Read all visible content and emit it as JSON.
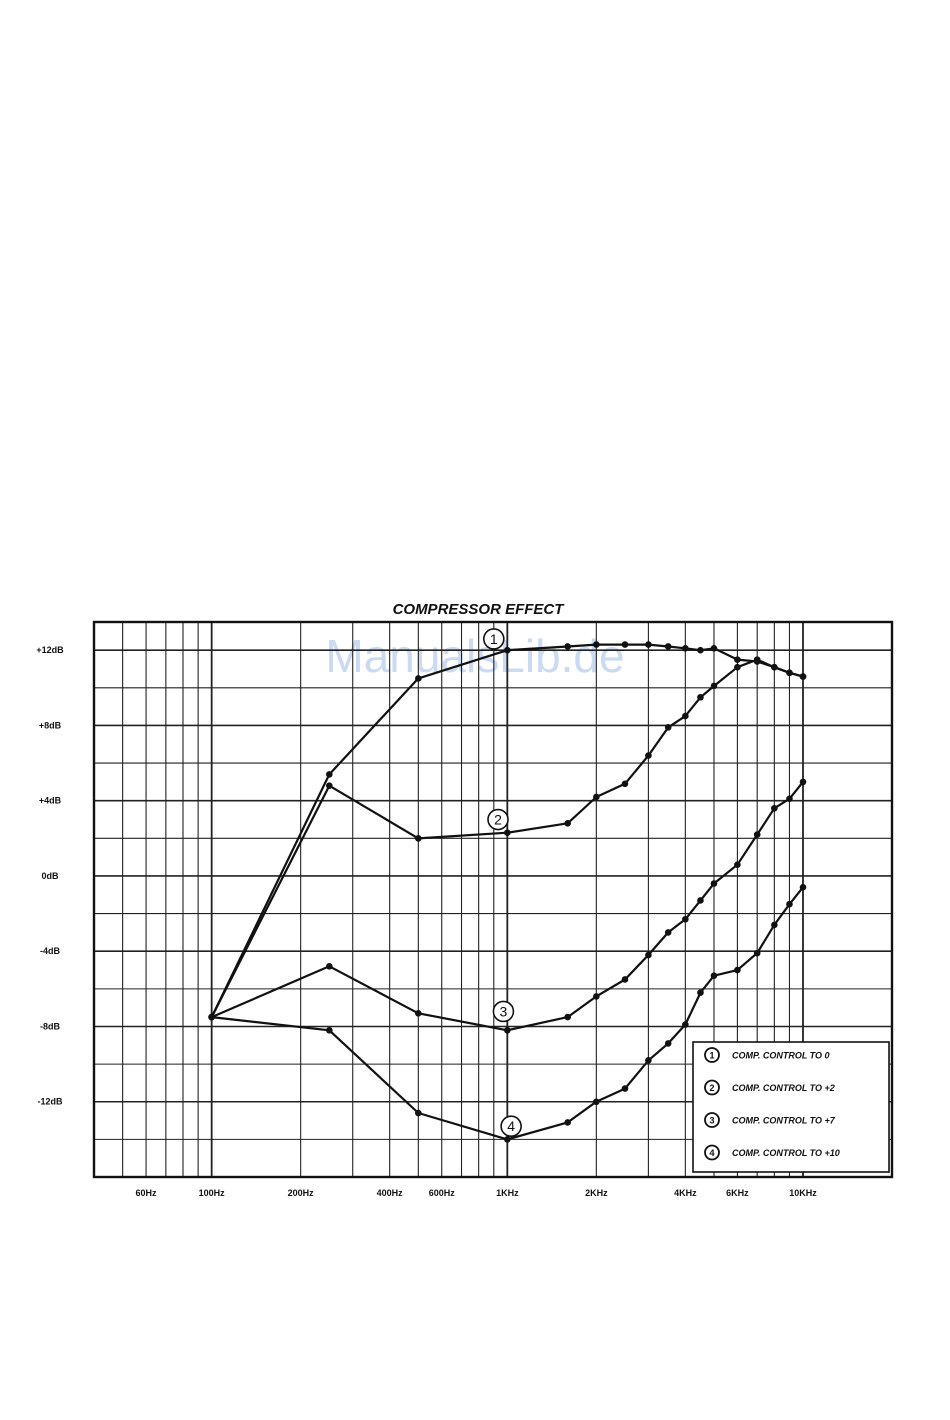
{
  "watermark": "ManualsLib.de",
  "chart_data": {
    "type": "line",
    "title": "COMPRESSOR EFFECT",
    "xlabel": "",
    "ylabel": "",
    "x_scale": "log",
    "xlim": [
      40,
      20000
    ],
    "ylim": [
      -16,
      13.5
    ],
    "grid": true,
    "x_ticks": [
      {
        "value": 60,
        "label": "60Hz"
      },
      {
        "value": 100,
        "label": "100Hz"
      },
      {
        "value": 200,
        "label": "200Hz"
      },
      {
        "value": 400,
        "label": "400Hz"
      },
      {
        "value": 600,
        "label": "600Hz"
      },
      {
        "value": 1000,
        "label": "1KHz"
      },
      {
        "value": 2000,
        "label": "2KHz"
      },
      {
        "value": 4000,
        "label": "4KHz"
      },
      {
        "value": 6000,
        "label": "6KHz"
      },
      {
        "value": 10000,
        "label": "10KHz"
      }
    ],
    "y_ticks": [
      {
        "value": 12,
        "label": "+12dB"
      },
      {
        "value": 8,
        "label": "+8dB"
      },
      {
        "value": 4,
        "label": "+4dB"
      },
      {
        "value": 0,
        "label": "0dB"
      },
      {
        "value": -4,
        "label": "-4dB"
      },
      {
        "value": -8,
        "label": "-8dB"
      },
      {
        "value": -12,
        "label": "-12dB"
      }
    ],
    "legend_position": "bottom-right",
    "legend": [
      {
        "marker": "1",
        "label": "COMP. CONTROL TO 0"
      },
      {
        "marker": "2",
        "label": "COMP. CONTROL TO +2"
      },
      {
        "marker": "3",
        "label": "COMP. CONTROL TO +7"
      },
      {
        "marker": "4",
        "label": "COMP. CONTROL TO +10"
      }
    ],
    "series": [
      {
        "marker": "1",
        "label_at": {
          "x": 900,
          "y": 12.6
        },
        "points": [
          [
            100,
            -7.5
          ],
          [
            250,
            5.4
          ],
          [
            500,
            10.5
          ],
          [
            1000,
            12.0
          ],
          [
            1600,
            12.2
          ],
          [
            2000,
            12.3
          ],
          [
            2500,
            12.3
          ],
          [
            3000,
            12.3
          ],
          [
            3500,
            12.2
          ],
          [
            4000,
            12.1
          ],
          [
            4500,
            12.0
          ],
          [
            5000,
            12.1
          ],
          [
            6000,
            11.5
          ],
          [
            7000,
            11.4
          ],
          [
            8000,
            11.1
          ],
          [
            9000,
            10.8
          ],
          [
            10000,
            10.6
          ]
        ]
      },
      {
        "marker": "2",
        "label_at": {
          "x": 930,
          "y": 3.0
        },
        "points": [
          [
            100,
            -7.5
          ],
          [
            250,
            4.8
          ],
          [
            500,
            2.0
          ],
          [
            1000,
            2.3
          ],
          [
            1600,
            2.8
          ],
          [
            2000,
            4.2
          ],
          [
            2500,
            4.9
          ],
          [
            3000,
            6.4
          ],
          [
            3500,
            7.9
          ],
          [
            4000,
            8.5
          ],
          [
            4500,
            9.5
          ],
          [
            5000,
            10.1
          ],
          [
            6000,
            11.1
          ],
          [
            7000,
            11.5
          ],
          [
            8000,
            11.1
          ],
          [
            9000,
            10.8
          ],
          [
            10000,
            10.6
          ]
        ]
      },
      {
        "marker": "3",
        "label_at": {
          "x": 970,
          "y": -7.2
        },
        "points": [
          [
            100,
            -7.5
          ],
          [
            250,
            -4.8
          ],
          [
            500,
            -7.3
          ],
          [
            1000,
            -8.2
          ],
          [
            1600,
            -7.5
          ],
          [
            2000,
            -6.4
          ],
          [
            2500,
            -5.5
          ],
          [
            3000,
            -4.2
          ],
          [
            3500,
            -3.0
          ],
          [
            4000,
            -2.3
          ],
          [
            4500,
            -1.3
          ],
          [
            5000,
            -0.4
          ],
          [
            6000,
            0.6
          ],
          [
            7000,
            2.2
          ],
          [
            8000,
            3.6
          ],
          [
            9000,
            4.1
          ],
          [
            10000,
            5.0
          ]
        ]
      },
      {
        "marker": "4",
        "label_at": {
          "x": 1030,
          "y": -13.3
        },
        "points": [
          [
            100,
            -7.5
          ],
          [
            250,
            -8.2
          ],
          [
            500,
            -12.6
          ],
          [
            1000,
            -14.0
          ],
          [
            1600,
            -13.1
          ],
          [
            2000,
            -12.0
          ],
          [
            2500,
            -11.3
          ],
          [
            3000,
            -9.8
          ],
          [
            3500,
            -8.9
          ],
          [
            4000,
            -7.9
          ],
          [
            4500,
            -6.2
          ],
          [
            5000,
            -5.3
          ],
          [
            6000,
            -5.0
          ],
          [
            7000,
            -4.1
          ],
          [
            8000,
            -2.6
          ],
          [
            9000,
            -1.5
          ],
          [
            10000,
            -0.6
          ]
        ]
      }
    ]
  }
}
